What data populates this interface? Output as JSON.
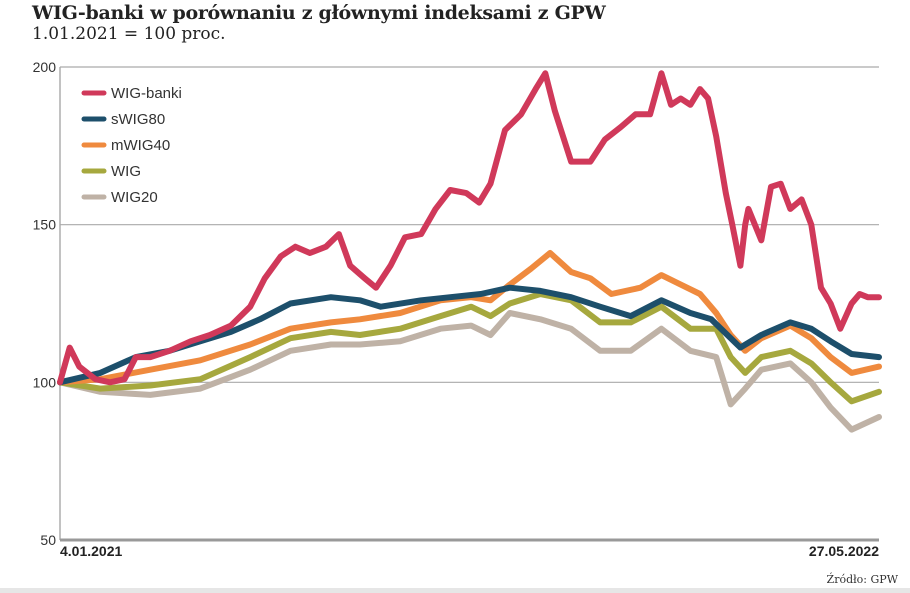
{
  "chart_data": {
    "type": "line",
    "title": "WIG-banki w porównaniu z głównymi indeksami z GPW",
    "subtitle": "1.01.2021 = 100 proc.",
    "source": "Źródło: GPW",
    "xlabel": "",
    "ylabel": "",
    "x_unit": "days since 4.01.2021",
    "x_tick_labels": [
      "4.01.2021",
      "27.05.2022"
    ],
    "xlim": [
      0,
      508
    ],
    "ylim": [
      50,
      200
    ],
    "y_ticks": [
      50,
      100,
      150,
      200
    ],
    "grid": true,
    "legend_position": "top-left",
    "series": [
      {
        "name": "WIG-banki",
        "color": "#d0395a",
        "x": [
          0,
          6,
          12,
          22,
          31,
          40,
          47,
          56,
          68,
          81,
          93,
          106,
          118,
          127,
          137,
          146,
          155,
          165,
          173,
          180,
          189,
          196,
          205,
          214,
          224,
          233,
          242,
          252,
          260,
          267,
          276,
          286,
          295,
          301,
          307,
          317,
          329,
          338,
          348,
          357,
          366,
          373,
          379,
          385,
          391,
          397,
          402,
          407,
          413,
          417,
          422,
          425,
          427,
          435,
          441,
          447,
          453,
          460,
          466,
          472,
          478,
          484,
          491,
          496,
          501,
          508
        ],
        "values": [
          100,
          111,
          105,
          101,
          100,
          101,
          108,
          108,
          110,
          113,
          115,
          118,
          124,
          133,
          140,
          143,
          141,
          143,
          147,
          137,
          133,
          130,
          137,
          146,
          147,
          155,
          161,
          160,
          157,
          163,
          180,
          185,
          193,
          198,
          186,
          170,
          170,
          177,
          181,
          185,
          185,
          198,
          188,
          190,
          188,
          193,
          190,
          178,
          160,
          150,
          137,
          150,
          155,
          145,
          162,
          163,
          155,
          158,
          150,
          130,
          125,
          117,
          125,
          128,
          127,
          127
        ]
      },
      {
        "name": "sWIG80",
        "color": "#1d4f6b",
        "x": [
          0,
          25,
          47,
          68,
          87,
          106,
          124,
          143,
          168,
          186,
          199,
          224,
          242,
          261,
          279,
          298,
          317,
          335,
          354,
          373,
          391,
          404,
          416,
          422,
          435,
          453,
          466,
          478,
          491,
          508
        ],
        "values": [
          100,
          103,
          108,
          110,
          113,
          116,
          120,
          125,
          127,
          126,
          124,
          126,
          127,
          128,
          130,
          129,
          127,
          124,
          121,
          126,
          122,
          120,
          114,
          111,
          115,
          119,
          117,
          113,
          109,
          108
        ]
      },
      {
        "name": "mWIG40",
        "color": "#ef8a3e",
        "x": [
          0,
          25,
          56,
          87,
          118,
          143,
          168,
          186,
          211,
          236,
          255,
          267,
          279,
          292,
          304,
          317,
          329,
          342,
          360,
          373,
          385,
          397,
          407,
          416,
          425,
          435,
          453,
          466,
          478,
          491,
          508
        ],
        "values": [
          100,
          101,
          104,
          107,
          112,
          117,
          119,
          120,
          122,
          126,
          127,
          126,
          131,
          136,
          141,
          135,
          133,
          128,
          130,
          134,
          131,
          128,
          122,
          115,
          110,
          114,
          118,
          114,
          108,
          103,
          105
        ]
      },
      {
        "name": "WIG",
        "color": "#a6a83e",
        "x": [
          0,
          25,
          56,
          87,
          118,
          143,
          168,
          186,
          211,
          236,
          255,
          267,
          279,
          298,
          317,
          335,
          354,
          373,
          391,
          407,
          416,
          425,
          435,
          453,
          466,
          478,
          491,
          508
        ],
        "values": [
          100,
          98,
          99,
          101,
          108,
          114,
          116,
          115,
          117,
          121,
          124,
          121,
          125,
          128,
          126,
          119,
          119,
          124,
          117,
          117,
          108,
          103,
          108,
          110,
          106,
          100,
          94,
          97
        ]
      },
      {
        "name": "WIG20",
        "color": "#bfb2a6",
        "x": [
          0,
          25,
          56,
          87,
          118,
          143,
          168,
          186,
          211,
          236,
          255,
          267,
          279,
          298,
          317,
          335,
          354,
          373,
          391,
          407,
          416,
          425,
          435,
          453,
          466,
          478,
          491,
          508
        ],
        "values": [
          100,
          97,
          96,
          98,
          104,
          110,
          112,
          112,
          113,
          117,
          118,
          115,
          122,
          120,
          117,
          110,
          110,
          117,
          110,
          108,
          93,
          98,
          104,
          106,
          100,
          92,
          85,
          89
        ]
      }
    ]
  }
}
